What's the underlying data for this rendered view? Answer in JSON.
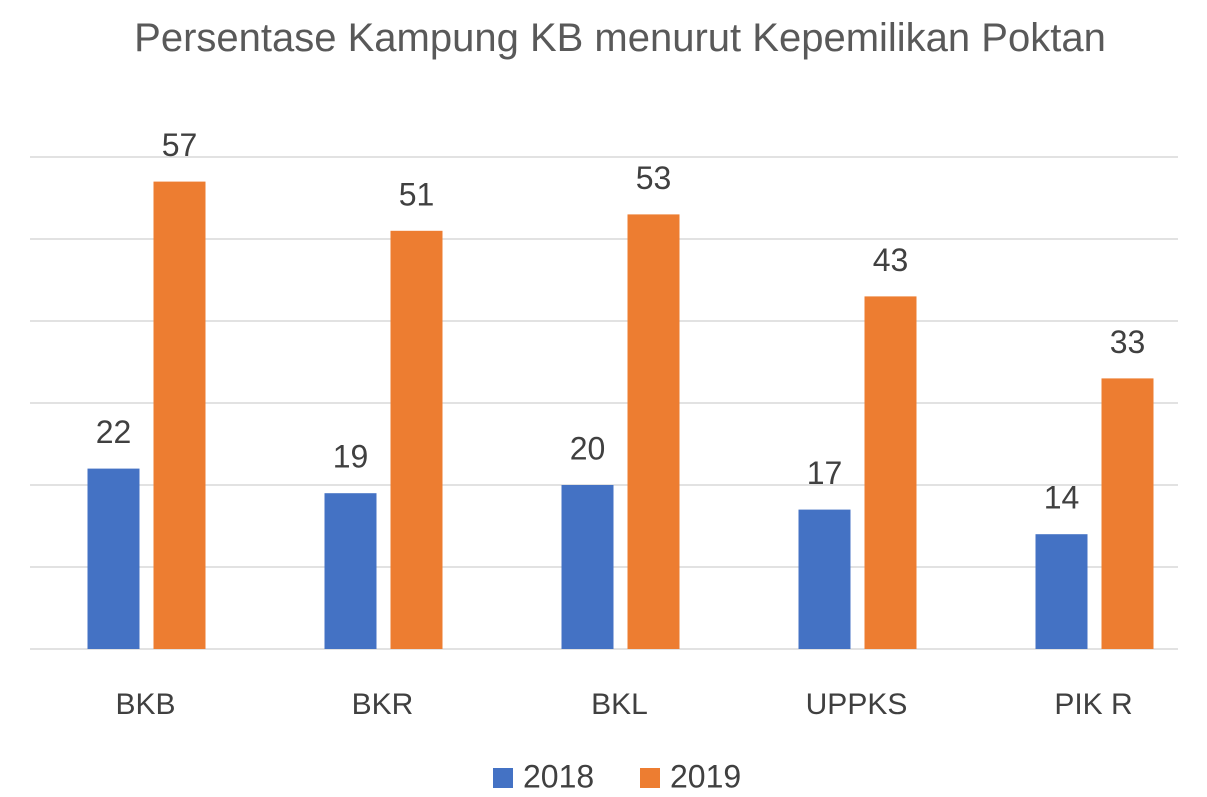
{
  "chart_data": {
    "type": "bar",
    "title": "Persentase Kampung KB menurut Kepemilikan Poktan",
    "categories": [
      "BKB",
      "BKR",
      "BKL",
      "UPPKS",
      "PIK R"
    ],
    "series": [
      {
        "name": "2018",
        "color": "#4472c4",
        "values": [
          22,
          19,
          20,
          17,
          14
        ]
      },
      {
        "name": "2019",
        "color": "#ed7d31",
        "values": [
          57,
          51,
          53,
          43,
          33
        ]
      }
    ],
    "ylim": [
      0,
      60
    ],
    "yticks": [
      0,
      10,
      20,
      30,
      40,
      50,
      60
    ],
    "grid": true,
    "legend": "bottom"
  }
}
